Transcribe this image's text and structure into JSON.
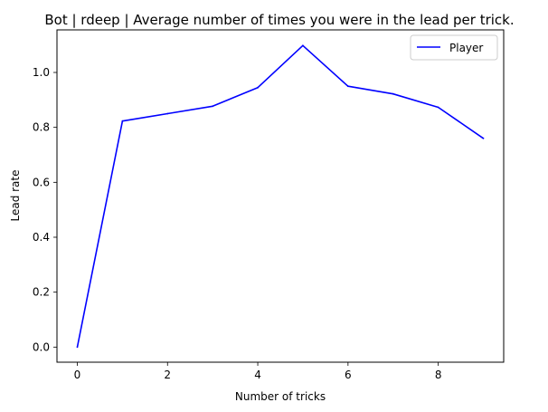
{
  "chart_data": {
    "type": "line",
    "title": "Bot | rdeep | Average number of times you were in the lead per trick.",
    "xlabel": "Number of tricks",
    "ylabel": "Lead rate",
    "xlim": [
      -0.45,
      9.45
    ],
    "ylim": [
      -0.055,
      1.155
    ],
    "xticks": [
      0,
      2,
      4,
      6,
      8
    ],
    "xtick_labels": [
      "0",
      "2",
      "4",
      "6",
      "8"
    ],
    "yticks": [
      0.0,
      0.2,
      0.4,
      0.6,
      0.8,
      1.0
    ],
    "ytick_labels": [
      "0.0",
      "0.2",
      "0.4",
      "0.6",
      "0.8",
      "1.0"
    ],
    "grid": false,
    "legend_position": "top-right",
    "x": [
      0,
      1,
      2,
      3,
      4,
      5,
      6,
      7,
      8,
      9
    ],
    "series": [
      {
        "name": "Player",
        "color": "#0000ff",
        "values": [
          0.0,
          0.823,
          0.85,
          0.877,
          0.945,
          1.098,
          0.95,
          0.922,
          0.873,
          0.76
        ]
      }
    ]
  }
}
